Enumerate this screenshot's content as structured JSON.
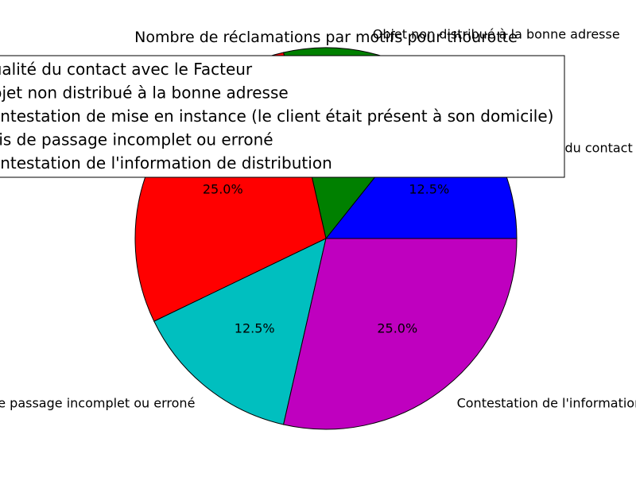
{
  "chart_data": {
    "type": "pie",
    "title": "Nombre de réclamations par motifs pour thourotte",
    "slices": [
      {
        "label": "Qualité du contact avec le Facteur",
        "value": 12.5,
        "pct_label": "12.5%",
        "color": "#0000ff"
      },
      {
        "label": "Objet non distribué à la bonne adresse",
        "value": 12.5,
        "pct_label": "12.5%",
        "color": "#008000"
      },
      {
        "label": "Contestation de mise en instance (le client était présent à son domicile)",
        "value": 25.0,
        "pct_label": "25.0%",
        "color": "#ff0000"
      },
      {
        "label": "Avis de passage incomplet ou erroné",
        "value": 12.5,
        "pct_label": "12.5%",
        "color": "#00bfbf"
      },
      {
        "label": "Contestation de l'information de distribution",
        "value": 25.0,
        "pct_label": "25.0%",
        "color": "#bf00bf"
      }
    ],
    "legend": {
      "placement": "top",
      "entries": [
        "Qualité du contact avec le Facteur",
        "Objet non distribué à la bonne adresse",
        "Contestation de mise en instance (le client était présent à son domicile)",
        "Avis de passage incomplet ou erroné",
        "Contestation de l'information de distribution"
      ]
    }
  }
}
